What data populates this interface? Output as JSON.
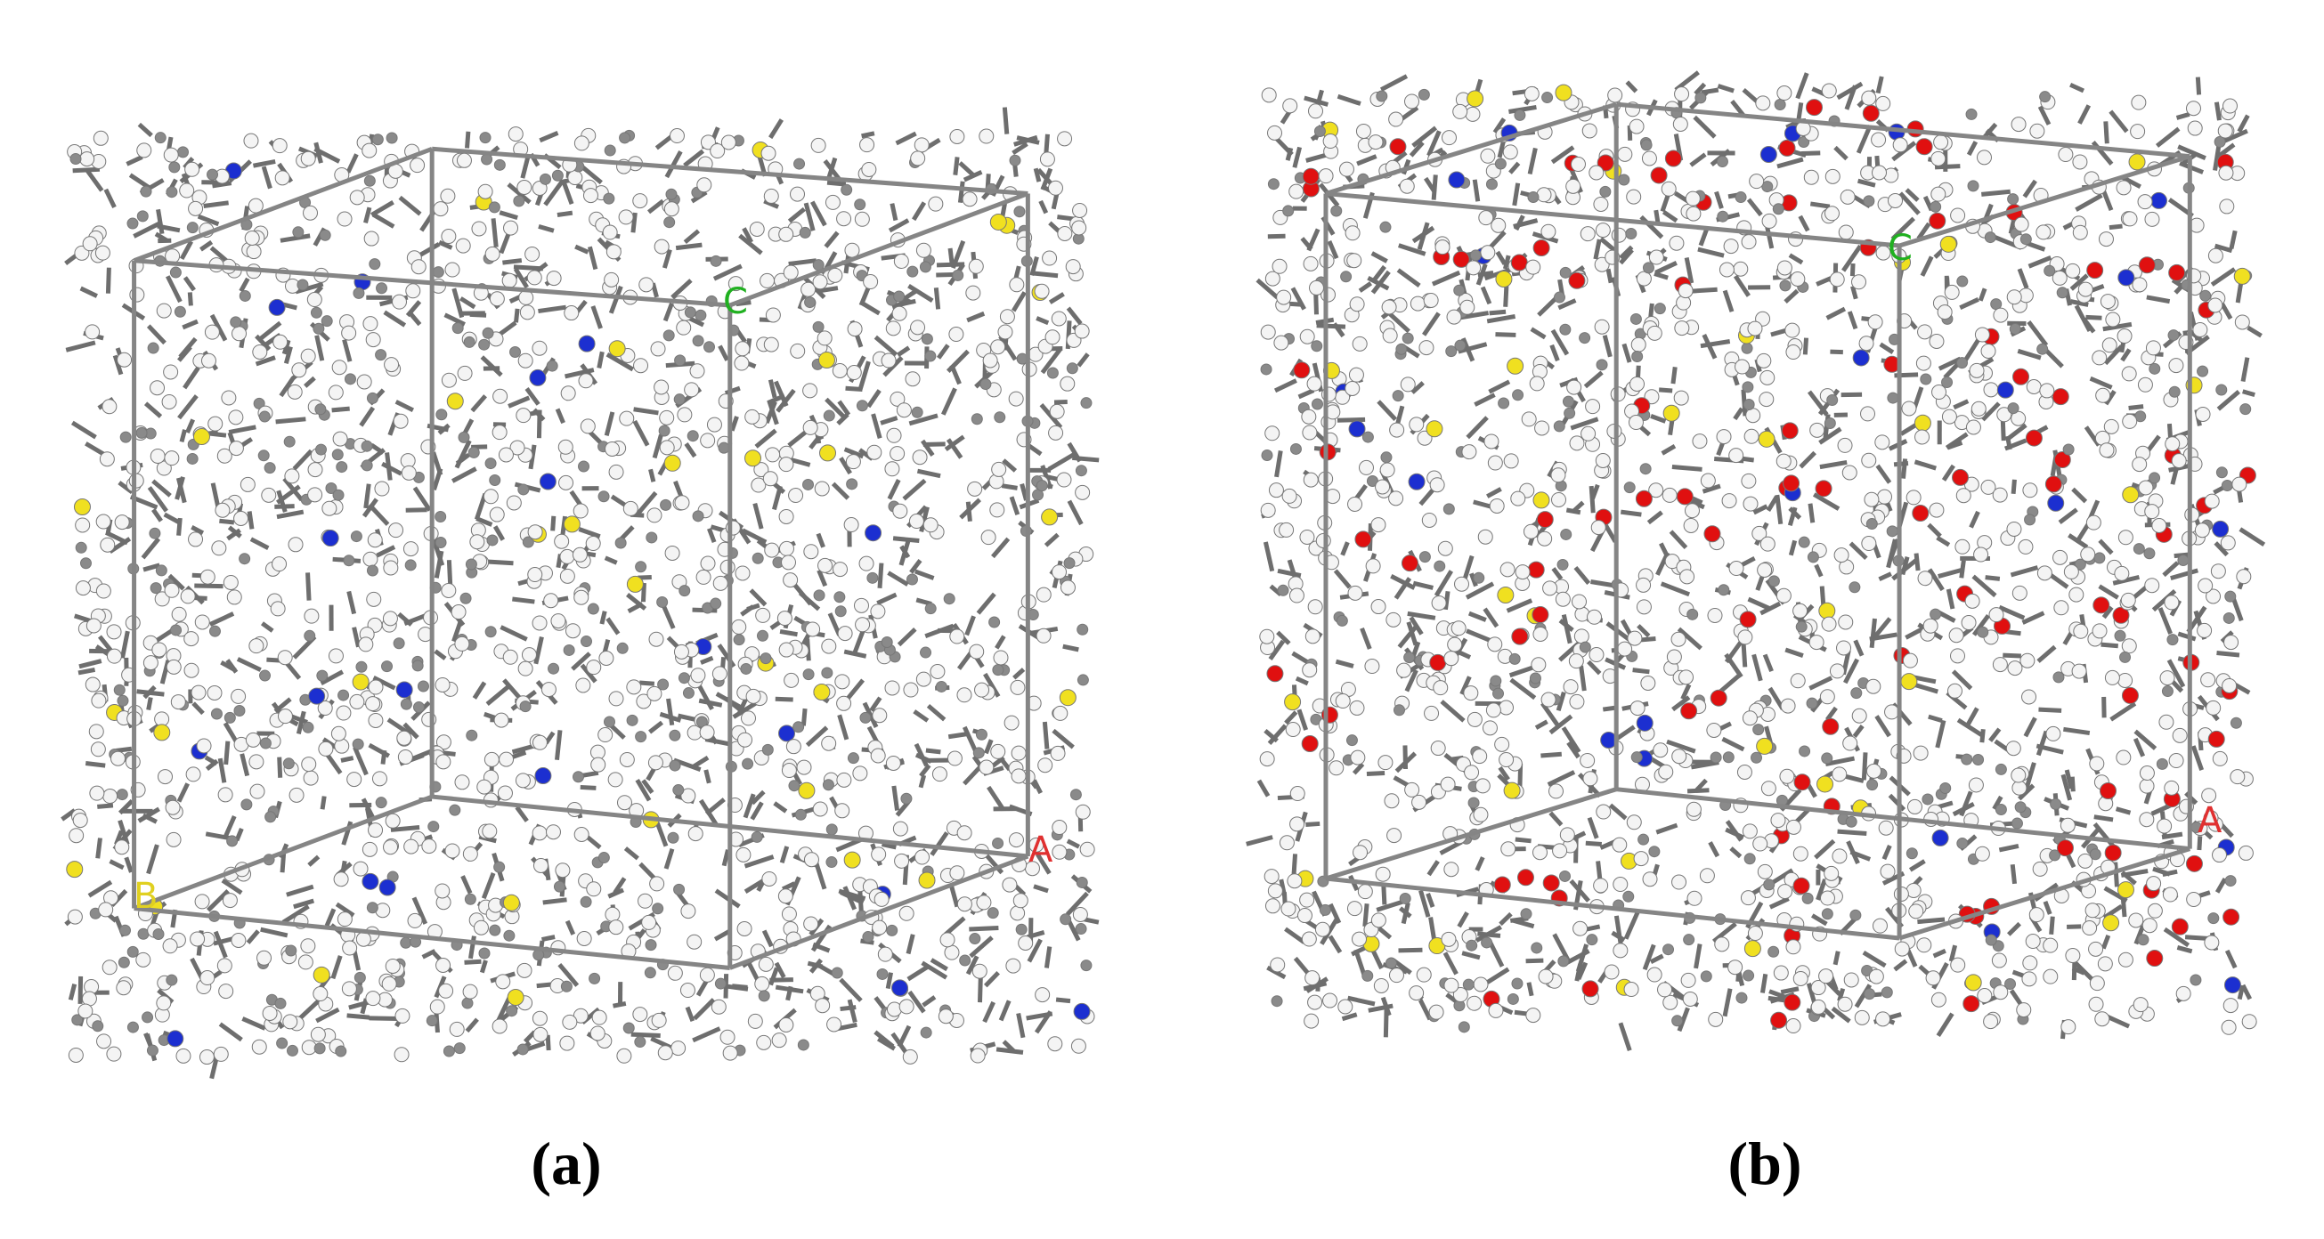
{
  "panels": [
    {
      "caption": "(a)",
      "axis_labels": {
        "a": "A",
        "b": "B",
        "c": "C"
      }
    },
    {
      "caption": "(b)",
      "axis_labels": {
        "a": "A",
        "c": "C"
      }
    }
  ]
}
